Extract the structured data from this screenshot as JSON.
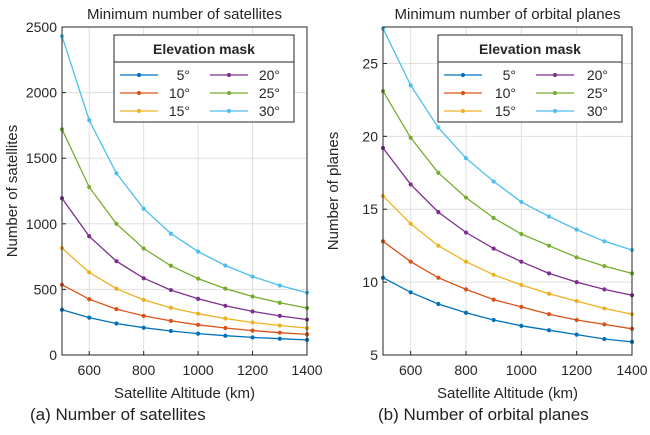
{
  "chart_data": [
    {
      "type": "line",
      "title": "Minimum number of satellites",
      "xlabel": "Satellite Altitude (km)",
      "ylabel": "Number of satellites",
      "caption": "(a) Number of satellites",
      "xlim": [
        500,
        1400
      ],
      "ylim": [
        0,
        2500
      ],
      "xticks": [
        600,
        800,
        1000,
        1200,
        1400
      ],
      "yticks": [
        0,
        500,
        1000,
        1500,
        2000,
        2500
      ],
      "grid": true,
      "legend": {
        "title": "Elevation mask",
        "placement": "top-right",
        "columns": 2
      },
      "x": [
        500,
        600,
        700,
        800,
        900,
        1000,
        1100,
        1200,
        1300,
        1400
      ],
      "series": [
        {
          "name": "5°",
          "color": "#0072BD",
          "values": [
            345,
            285,
            240,
            208,
            183,
            163,
            147,
            134,
            124,
            115
          ]
        },
        {
          "name": "10°",
          "color": "#D95319",
          "values": [
            535,
            425,
            350,
            298,
            260,
            230,
            206,
            186,
            170,
            157
          ]
        },
        {
          "name": "15°",
          "color": "#EDB120",
          "values": [
            815,
            630,
            505,
            420,
            360,
            315,
            278,
            248,
            225,
            205
          ]
        },
        {
          "name": "20°",
          "color": "#7E2F8E",
          "values": [
            1195,
            905,
            715,
            585,
            495,
            428,
            375,
            332,
            298,
            270
          ]
        },
        {
          "name": "25°",
          "color": "#77AC30",
          "values": [
            1720,
            1280,
            1000,
            812,
            680,
            582,
            506,
            446,
            398,
            358
          ]
        },
        {
          "name": "30°",
          "color": "#4DBEEE",
          "values": [
            2430,
            1790,
            1385,
            1115,
            925,
            788,
            682,
            598,
            530,
            475
          ]
        }
      ]
    },
    {
      "type": "line",
      "title": "Minimum number of orbital planes",
      "xlabel": "Satellite Altitude (km)",
      "ylabel": "Number of planes",
      "caption": "(b) Number of orbital planes",
      "xlim": [
        500,
        1400
      ],
      "ylim": [
        5,
        27.5
      ],
      "xticks": [
        600,
        800,
        1000,
        1200,
        1400
      ],
      "yticks": [
        5,
        10,
        15,
        20,
        25
      ],
      "grid": true,
      "legend": {
        "title": "Elevation mask",
        "placement": "top-right",
        "columns": 2
      },
      "x": [
        500,
        600,
        700,
        800,
        900,
        1000,
        1100,
        1200,
        1300,
        1400
      ],
      "series": [
        {
          "name": "5°",
          "color": "#0072BD",
          "values": [
            10.3,
            9.3,
            8.5,
            7.9,
            7.4,
            7.0,
            6.7,
            6.4,
            6.1,
            5.9
          ]
        },
        {
          "name": "10°",
          "color": "#D95319",
          "values": [
            12.8,
            11.4,
            10.3,
            9.5,
            8.8,
            8.3,
            7.8,
            7.4,
            7.1,
            6.8
          ]
        },
        {
          "name": "15°",
          "color": "#EDB120",
          "values": [
            15.9,
            14.0,
            12.5,
            11.4,
            10.5,
            9.8,
            9.2,
            8.7,
            8.2,
            7.8
          ]
        },
        {
          "name": "20°",
          "color": "#7E2F8E",
          "values": [
            19.2,
            16.7,
            14.8,
            13.4,
            12.3,
            11.4,
            10.6,
            10.0,
            9.5,
            9.1
          ]
        },
        {
          "name": "25°",
          "color": "#77AC30",
          "values": [
            23.1,
            19.9,
            17.5,
            15.8,
            14.4,
            13.3,
            12.5,
            11.7,
            11.1,
            10.6
          ]
        },
        {
          "name": "30°",
          "color": "#4DBEEE",
          "values": [
            27.4,
            23.5,
            20.6,
            18.5,
            16.9,
            15.5,
            14.5,
            13.6,
            12.8,
            12.2
          ]
        }
      ]
    }
  ]
}
